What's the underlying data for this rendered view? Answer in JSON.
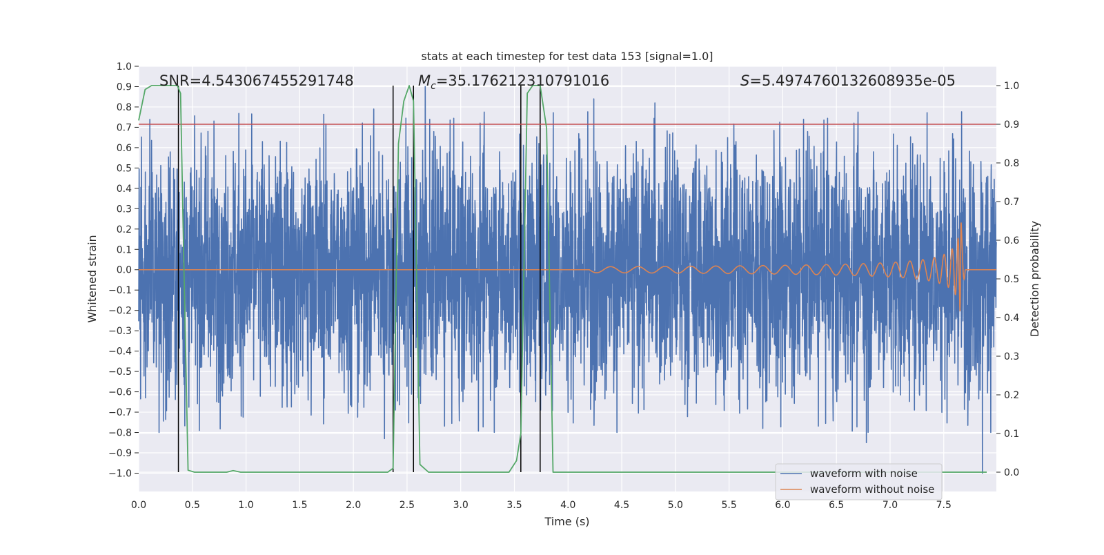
{
  "chart_data": {
    "type": "line",
    "title": "stats at each timestep for test data 153 [signal=1.0]",
    "xlabel": "Time (s)",
    "ylabel": "Whitened strain",
    "y2label": "Detection probability",
    "xlim": [
      0.0,
      7.99
    ],
    "ylim": [
      -1.09,
      1.0
    ],
    "y2lim": [
      -0.05,
      1.05
    ],
    "xticks": [
      0.0,
      0.5,
      1.0,
      1.5,
      2.0,
      2.5,
      3.0,
      3.5,
      4.0,
      4.5,
      5.0,
      5.5,
      6.0,
      6.5,
      7.0,
      7.5
    ],
    "xtick_labels": [
      "0.0",
      "0.5",
      "1.0",
      "1.5",
      "2.0",
      "2.5",
      "3.0",
      "3.5",
      "4.0",
      "4.5",
      "5.0",
      "5.5",
      "6.0",
      "6.5",
      "7.0",
      "7.5"
    ],
    "yticks": [
      1.0,
      0.9,
      0.8,
      0.7,
      0.6,
      0.5,
      0.4,
      0.3,
      0.2,
      0.1,
      0.0,
      -0.1,
      -0.2,
      -0.3,
      -0.4,
      -0.5,
      -0.6,
      -0.7,
      -0.8,
      -0.9,
      -1.0
    ],
    "ytick_labels": [
      "1.0",
      "0.9",
      "0.8",
      "0.7",
      "0.6",
      "0.5",
      "0.4",
      "0.3",
      "0.2",
      "0.1",
      "0.0",
      "−0.1",
      "−0.2",
      "−0.3",
      "−0.4",
      "−0.5",
      "−0.6",
      "−0.7",
      "−0.8",
      "−0.9",
      "−1.0"
    ],
    "y2ticks": [
      1.0,
      0.9,
      0.8,
      0.7,
      0.6,
      0.5,
      0.4,
      0.3,
      0.2,
      0.1,
      0.0
    ],
    "y2tick_labels": [
      "1.0",
      "0.9",
      "0.8",
      "0.7",
      "0.6",
      "0.5",
      "0.4",
      "0.3",
      "0.2",
      "0.1",
      "0.0"
    ],
    "grid": true,
    "legend_position": "bottom-right",
    "annotations": {
      "snr": "SNR=4.543067455291748",
      "mc_symbol": "M",
      "mc_sub": "c",
      "mc_value": "=35.176212310791016",
      "s_symbol": "S",
      "s_value": "=5.4974760132608935e-05"
    },
    "series": [
      {
        "name": "waveform with noise",
        "color": "#4c72b0",
        "axis": "left",
        "description": "dense noise, roughly within ±0.6, peaks near 0.9 and -1.0",
        "amplitude_envelope": 0.55,
        "duration_s": 7.99,
        "notable_spikes": [
          {
            "x": 2.19,
            "y": 0.79
          },
          {
            "x": 2.67,
            "y": 0.9
          },
          {
            "x": 4.24,
            "y": 0.84
          },
          {
            "x": 4.81,
            "y": 0.82
          },
          {
            "x": 2.29,
            "y": -0.83
          },
          {
            "x": 6.78,
            "y": -0.85
          },
          {
            "x": 7.86,
            "y": -1.0
          },
          {
            "x": 0.19,
            "y": -0.8
          }
        ]
      },
      {
        "name": "waveform without noise",
        "color": "#dd8452",
        "axis": "left",
        "description": "chirp signal rising toward merger near t=7.66 s",
        "merger_time_s": 7.66,
        "peak_amplitude": 0.25,
        "chirp_start_s": 4.2
      },
      {
        "name": "detection probability",
        "color": "#55a868",
        "axis": "right",
        "x": [
          0.0,
          0.06,
          0.12,
          0.18,
          0.24,
          0.3,
          0.36,
          0.39,
          0.42,
          0.46,
          0.52,
          0.62,
          0.72,
          0.82,
          0.88,
          0.95,
          1.05,
          1.3,
          1.6,
          1.9,
          2.2,
          2.32,
          2.37,
          2.42,
          2.47,
          2.52,
          2.56,
          2.62,
          2.7,
          2.9,
          3.2,
          3.45,
          3.52,
          3.56,
          3.62,
          3.67,
          3.74,
          3.8,
          3.86,
          4.0,
          5.0,
          6.0,
          7.0,
          7.5,
          7.9
        ],
        "values": [
          0.91,
          0.99,
          1.0,
          1.0,
          1.0,
          1.0,
          1.0,
          0.98,
          0.55,
          0.005,
          0.0,
          0.0,
          0.0,
          0.0,
          0.004,
          0.0,
          0.0,
          0.0,
          0.0,
          0.0,
          0.0,
          0.0,
          0.01,
          0.85,
          0.96,
          1.0,
          0.96,
          0.02,
          0.0,
          0.0,
          0.0,
          0.0,
          0.03,
          0.1,
          0.98,
          1.0,
          1.0,
          0.89,
          0.0,
          0.0,
          0.0,
          0.0,
          0.0,
          0.0,
          0.0
        ]
      },
      {
        "name": "threshold",
        "color": "#c44e52",
        "axis": "right",
        "values": [
          0.9
        ]
      }
    ],
    "vertical_markers": {
      "color": "#000000",
      "x": [
        0.37,
        2.37,
        2.56,
        3.56,
        3.74
      ]
    }
  }
}
